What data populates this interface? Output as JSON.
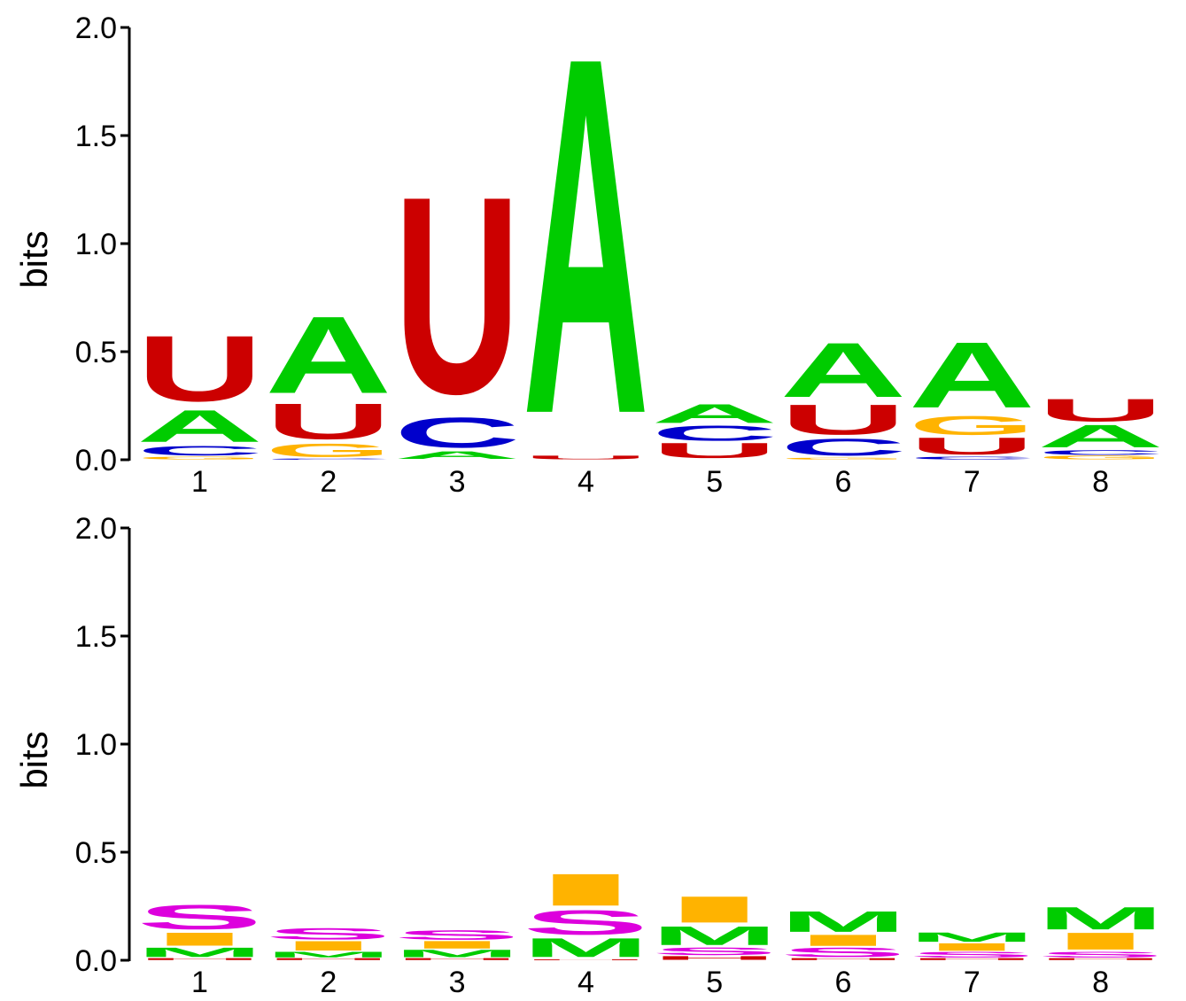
{
  "colors": {
    "A": "#00cc00",
    "C": "#0000cc",
    "G": "#ffb300",
    "U": "#cc0000",
    "S": "#dd00dd",
    "I": "#ffb300",
    "M": "#00cc00",
    "H": "#cc0000"
  },
  "chart_data": [
    {
      "type": "sequence-logo",
      "ylabel": "bits",
      "ylim": [
        0,
        2.0
      ],
      "yticks": [
        "0.0",
        "0.5",
        "1.0",
        "1.5",
        "2.0"
      ],
      "categories": [
        "1",
        "2",
        "3",
        "4",
        "5",
        "6",
        "7",
        "8"
      ],
      "positions": [
        {
          "label": "1",
          "letters": [
            {
              "letter": "G",
              "height": 0.015
            },
            {
              "letter": "C",
              "height": 0.05
            },
            {
              "letter": "A",
              "height": 0.17
            },
            {
              "letter": "U",
              "height": 0.35
            }
          ]
        },
        {
          "label": "2",
          "letters": [
            {
              "letter": "C",
              "height": 0.006
            },
            {
              "letter": "G",
              "height": 0.07
            },
            {
              "letter": "U",
              "height": 0.19
            },
            {
              "letter": "A",
              "height": 0.41
            }
          ]
        },
        {
          "label": "3",
          "letters": [
            {
              "letter": "A",
              "height": 0.04
            },
            {
              "letter": "C",
              "height": 0.16
            },
            {
              "letter": "U",
              "height": 1.05
            }
          ]
        },
        {
          "label": "4",
          "letters": [
            {
              "letter": "U",
              "height": 0.02
            },
            {
              "letter": "A",
              "height": 1.9
            }
          ]
        },
        {
          "label": "5",
          "letters": [
            {
              "letter": "U",
              "height": 0.08
            },
            {
              "letter": "C",
              "height": 0.08
            },
            {
              "letter": "A",
              "height": 0.1
            }
          ]
        },
        {
          "label": "6",
          "letters": [
            {
              "letter": "G",
              "height": 0.01
            },
            {
              "letter": "C",
              "height": 0.09
            },
            {
              "letter": "U",
              "height": 0.16
            },
            {
              "letter": "A",
              "height": 0.29
            }
          ]
        },
        {
          "label": "7",
          "letters": [
            {
              "letter": "C",
              "height": 0.015
            },
            {
              "letter": "U",
              "height": 0.09
            },
            {
              "letter": "G",
              "height": 0.1
            },
            {
              "letter": "A",
              "height": 0.35
            }
          ]
        },
        {
          "label": "8",
          "letters": [
            {
              "letter": "G",
              "height": 0.02
            },
            {
              "letter": "C",
              "height": 0.025
            },
            {
              "letter": "A",
              "height": 0.12
            },
            {
              "letter": "U",
              "height": 0.12
            }
          ]
        }
      ]
    },
    {
      "type": "sequence-logo",
      "ylabel": "bits",
      "ylim": [
        0,
        2.0
      ],
      "yticks": [
        "0.0",
        "0.5",
        "1.0",
        "1.5",
        "2.0"
      ],
      "categories": [
        "1",
        "2",
        "3",
        "4",
        "5",
        "6",
        "7",
        "8"
      ],
      "positions": [
        {
          "label": "1",
          "letters": [
            {
              "letter": "H",
              "height": 0.01
            },
            {
              "letter": "M",
              "height": 0.05
            },
            {
              "letter": "I",
              "height": 0.07
            },
            {
              "letter": "S",
              "height": 0.13
            }
          ]
        },
        {
          "label": "2",
          "letters": [
            {
              "letter": "H",
              "height": 0.01
            },
            {
              "letter": "M",
              "height": 0.03
            },
            {
              "letter": "I",
              "height": 0.05
            },
            {
              "letter": "S",
              "height": 0.06
            }
          ]
        },
        {
          "label": "3",
          "letters": [
            {
              "letter": "H",
              "height": 0.01
            },
            {
              "letter": "M",
              "height": 0.04
            },
            {
              "letter": "I",
              "height": 0.04
            },
            {
              "letter": "S",
              "height": 0.05
            }
          ]
        },
        {
          "label": "4",
          "letters": [
            {
              "letter": "H",
              "height": 0.005
            },
            {
              "letter": "M",
              "height": 0.1
            },
            {
              "letter": "S",
              "height": 0.13
            },
            {
              "letter": "I",
              "height": 0.17
            }
          ]
        },
        {
          "label": "5",
          "letters": [
            {
              "letter": "H",
              "height": 0.02
            },
            {
              "letter": "S",
              "height": 0.04
            },
            {
              "letter": "M",
              "height": 0.1
            },
            {
              "letter": "I",
              "height": 0.14
            }
          ]
        },
        {
          "label": "6",
          "letters": [
            {
              "letter": "H",
              "height": 0.01
            },
            {
              "letter": "S",
              "height": 0.05
            },
            {
              "letter": "I",
              "height": 0.06
            },
            {
              "letter": "M",
              "height": 0.11
            }
          ]
        },
        {
          "label": "7",
          "letters": [
            {
              "letter": "H",
              "height": 0.01
            },
            {
              "letter": "S",
              "height": 0.03
            },
            {
              "letter": "I",
              "height": 0.04
            },
            {
              "letter": "M",
              "height": 0.05
            }
          ]
        },
        {
          "label": "8",
          "letters": [
            {
              "letter": "H",
              "height": 0.01
            },
            {
              "letter": "S",
              "height": 0.03
            },
            {
              "letter": "I",
              "height": 0.09
            },
            {
              "letter": "M",
              "height": 0.12
            }
          ]
        }
      ]
    }
  ]
}
